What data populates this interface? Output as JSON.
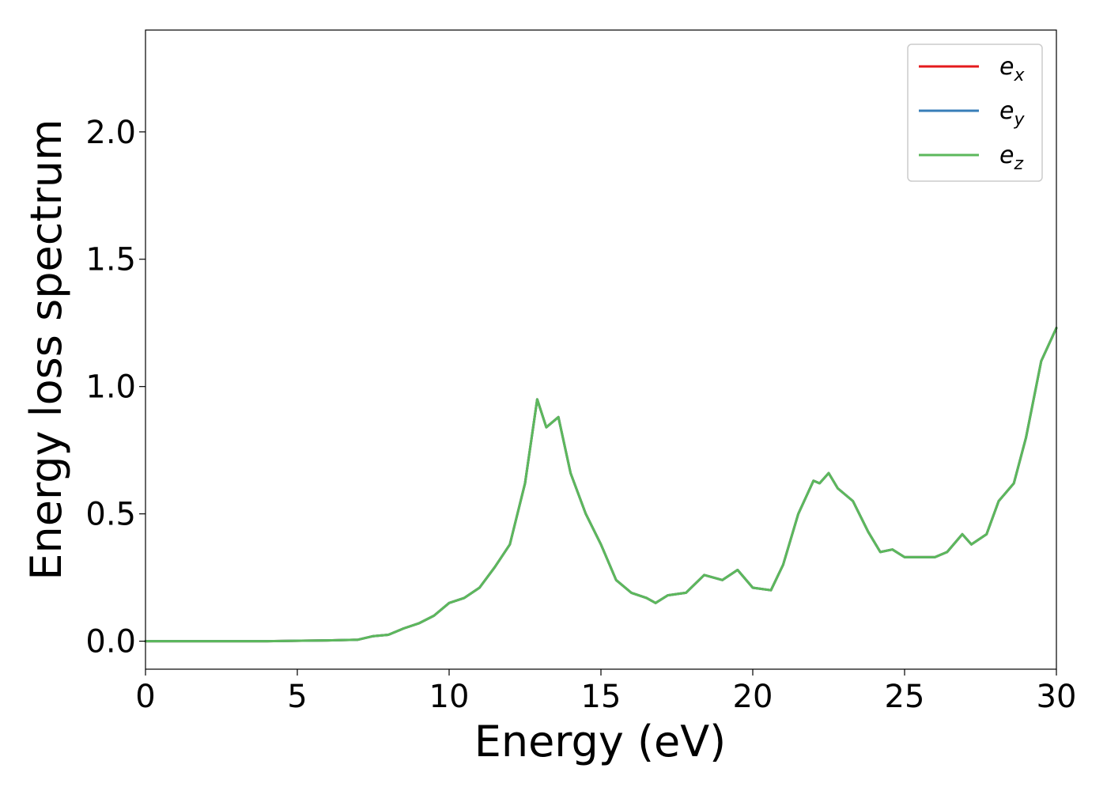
{
  "chart_data": {
    "type": "line",
    "title": "",
    "xlabel": "Energy (eV)",
    "ylabel": "Energy loss spectrum",
    "xlim": [
      0,
      30
    ],
    "ylim": [
      -0.11,
      2.4
    ],
    "xticks": [
      0,
      5,
      10,
      15,
      20,
      25,
      30
    ],
    "xtick_labels": [
      "0",
      "5",
      "10",
      "15",
      "20",
      "25",
      "30"
    ],
    "yticks": [
      0.0,
      0.5,
      1.0,
      1.5,
      2.0
    ],
    "ytick_labels": [
      "0.0",
      "0.5",
      "1.0",
      "1.5",
      "2.0"
    ],
    "grid": false,
    "legend_position": "top-right",
    "series": [
      {
        "name": "e_x",
        "legend_main": "e",
        "legend_sub": "x",
        "color": "#e41a1c",
        "x": [
          0,
          2,
          4,
          6,
          7,
          7.5,
          8,
          8.5,
          9,
          9.5,
          10,
          10.5,
          11,
          11.5,
          12,
          12.5,
          12.9,
          13.2,
          13.6,
          14,
          14.5,
          15,
          15.5,
          16,
          16.5,
          16.8,
          17.2,
          17.8,
          18.4,
          19,
          19.5,
          20,
          20.6,
          21,
          21.5,
          22,
          22.2,
          22.5,
          22.8,
          23.3,
          23.8,
          24.2,
          24.6,
          25,
          25.5,
          26,
          26.4,
          26.9,
          27.2,
          27.7,
          28.1,
          28.6,
          29,
          29.5,
          30
        ],
        "y": [
          0.0,
          0.0,
          0.0,
          0.003,
          0.006,
          0.02,
          0.025,
          0.05,
          0.07,
          0.1,
          0.15,
          0.17,
          0.21,
          0.29,
          0.38,
          0.62,
          0.95,
          0.84,
          0.88,
          0.66,
          0.5,
          0.38,
          0.24,
          0.19,
          0.17,
          0.15,
          0.18,
          0.19,
          0.26,
          0.24,
          0.28,
          0.21,
          0.2,
          0.3,
          0.5,
          0.63,
          0.62,
          0.66,
          0.6,
          0.55,
          0.43,
          0.35,
          0.36,
          0.33,
          0.33,
          0.33,
          0.35,
          0.42,
          0.38,
          0.42,
          0.55,
          0.62,
          0.8,
          1.1,
          1.23
        ]
      },
      {
        "name": "e_y",
        "legend_main": "e",
        "legend_sub": "y",
        "color": "#377eb8",
        "x": [
          0,
          2,
          4,
          6,
          7,
          7.5,
          8,
          8.5,
          9,
          9.5,
          10,
          10.5,
          11,
          11.5,
          12,
          12.5,
          12.9,
          13.2,
          13.6,
          14,
          14.5,
          15,
          15.5,
          16,
          16.5,
          16.8,
          17.2,
          17.8,
          18.4,
          19,
          19.5,
          20,
          20.6,
          21,
          21.5,
          22,
          22.2,
          22.5,
          22.8,
          23.3,
          23.8,
          24.2,
          24.6,
          25,
          25.5,
          26,
          26.4,
          26.9,
          27.2,
          27.7,
          28.1,
          28.6,
          29,
          29.5,
          30
        ],
        "y": [
          0.0,
          0.0,
          0.0,
          0.003,
          0.006,
          0.02,
          0.025,
          0.05,
          0.07,
          0.1,
          0.15,
          0.17,
          0.21,
          0.29,
          0.38,
          0.62,
          0.95,
          0.84,
          0.88,
          0.66,
          0.5,
          0.38,
          0.24,
          0.19,
          0.17,
          0.15,
          0.18,
          0.19,
          0.26,
          0.24,
          0.28,
          0.21,
          0.2,
          0.3,
          0.5,
          0.63,
          0.62,
          0.66,
          0.6,
          0.55,
          0.43,
          0.35,
          0.36,
          0.33,
          0.33,
          0.33,
          0.35,
          0.42,
          0.38,
          0.42,
          0.55,
          0.62,
          0.8,
          1.1,
          1.23
        ]
      },
      {
        "name": "e_z",
        "legend_main": "e",
        "legend_sub": "z",
        "color": "#5cb85c",
        "x": [
          0,
          2,
          4,
          6,
          7,
          7.5,
          8,
          8.5,
          9,
          9.5,
          10,
          10.5,
          11,
          11.5,
          12,
          12.5,
          12.9,
          13.2,
          13.6,
          14,
          14.5,
          15,
          15.5,
          16,
          16.5,
          16.8,
          17.2,
          17.8,
          18.4,
          19,
          19.5,
          20,
          20.6,
          21,
          21.5,
          22,
          22.2,
          22.5,
          22.8,
          23.3,
          23.8,
          24.2,
          24.6,
          25,
          25.5,
          26,
          26.4,
          26.9,
          27.2,
          27.7,
          28.1,
          28.6,
          29,
          29.5,
          30
        ],
        "y": [
          0.0,
          0.0,
          0.0,
          0.003,
          0.006,
          0.02,
          0.025,
          0.05,
          0.07,
          0.1,
          0.15,
          0.17,
          0.21,
          0.29,
          0.38,
          0.62,
          0.95,
          0.84,
          0.88,
          0.66,
          0.5,
          0.38,
          0.24,
          0.19,
          0.17,
          0.15,
          0.18,
          0.19,
          0.26,
          0.24,
          0.28,
          0.21,
          0.2,
          0.3,
          0.5,
          0.63,
          0.62,
          0.66,
          0.6,
          0.55,
          0.43,
          0.35,
          0.36,
          0.33,
          0.33,
          0.33,
          0.35,
          0.42,
          0.38,
          0.42,
          0.55,
          0.62,
          0.8,
          1.1,
          1.23
        ]
      }
    ]
  }
}
